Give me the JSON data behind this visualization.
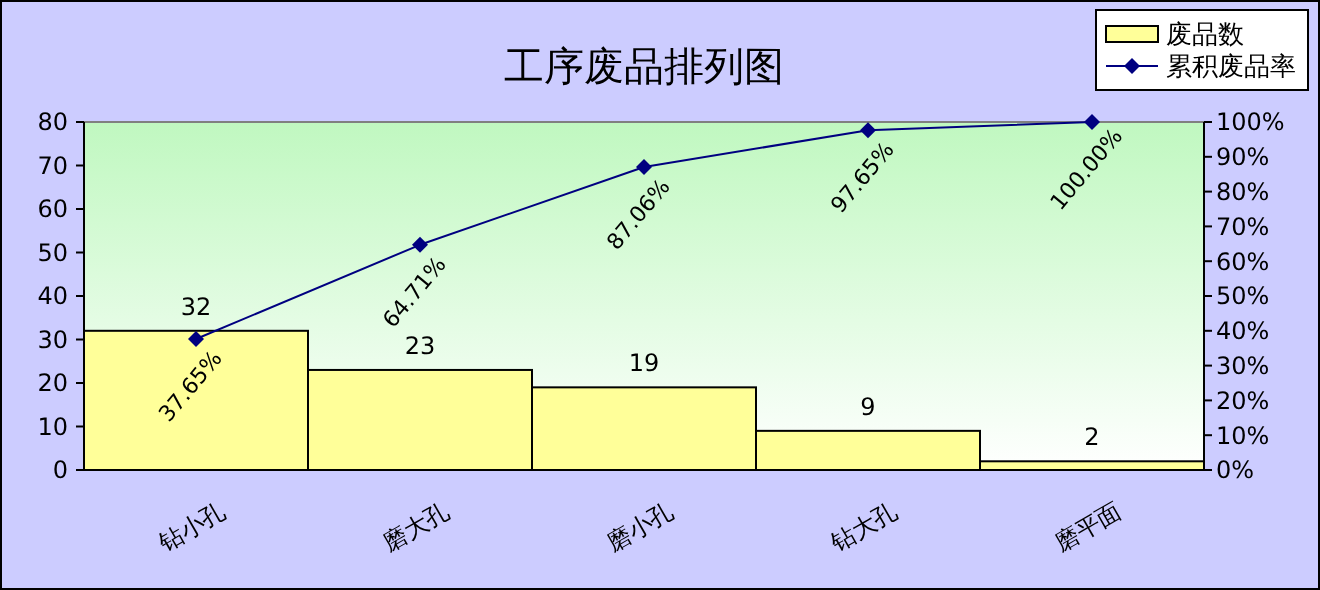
{
  "chart_data": {
    "type": "bar",
    "title": "工序废品排列图",
    "categories": [
      "钻小孔",
      "磨大孔",
      "磨小孔",
      "钻大孔",
      "磨平面"
    ],
    "series": [
      {
        "name": "废品数",
        "color": "#ffff99",
        "values": [
          32,
          23,
          19,
          9,
          2
        ],
        "value_labels": [
          "32",
          "23",
          "19",
          "9",
          "2"
        ]
      },
      {
        "name": "累积废品率",
        "type": "line",
        "axis": "y2",
        "color": "#000080",
        "values": [
          37.65,
          64.71,
          87.06,
          97.65,
          100
        ],
        "value_labels": [
          "37.65%",
          "64.71%",
          "87.06%",
          "97.65%",
          "100.00%"
        ]
      }
    ],
    "ylim": [
      0,
      80
    ],
    "yticks": [
      0,
      10,
      20,
      30,
      40,
      50,
      60,
      70,
      80
    ],
    "y2lim": [
      0,
      100
    ],
    "y2ticks": [
      {
        "value": 0,
        "label": "0%"
      },
      {
        "value": 10,
        "label": "10%"
      },
      {
        "value": 20,
        "label": "20%"
      },
      {
        "value": 30,
        "label": "30%"
      },
      {
        "value": 40,
        "label": "40%"
      },
      {
        "value": 50,
        "label": "50%"
      },
      {
        "value": 60,
        "label": "60%"
      },
      {
        "value": 70,
        "label": "70%"
      },
      {
        "value": 80,
        "label": "80%"
      },
      {
        "value": 90,
        "label": "90%"
      },
      {
        "value": 100,
        "label": "100%"
      }
    ],
    "legend": "top right",
    "marker": "diamond"
  }
}
